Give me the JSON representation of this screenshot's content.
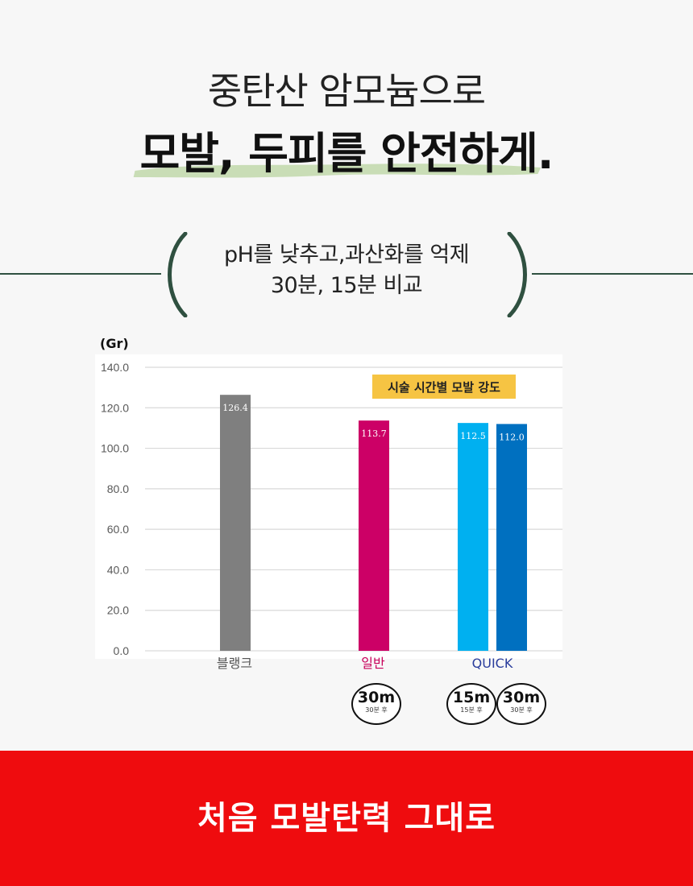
{
  "headline": {
    "line1": "중탄산 암모늄으로",
    "line2": "모발, 두피를 안전하게."
  },
  "subtitle": {
    "line1": "pH를 낮추고,과산화를 억제",
    "line2": "30분, 15분 비교"
  },
  "colors": {
    "accent_green": "#2f5040",
    "brush_green": "#c9ddb6",
    "footer_red": "#ef0c0e",
    "legend_bg": "#f6c443"
  },
  "chart_data": {
    "type": "bar",
    "unit_label": "(Gr)",
    "legend": "시술 시간별 모발 강도",
    "ylim": [
      0,
      140
    ],
    "yticks": [
      "0.0",
      "20.0",
      "40.0",
      "60.0",
      "80.0",
      "100.0",
      "120.0",
      "140.0"
    ],
    "grid": true,
    "categories": [
      {
        "label": "블랭크",
        "color": "#555555"
      },
      {
        "label": "일반",
        "color": "#c8005a"
      },
      {
        "label": "QUICK",
        "color": "#2a3d9c"
      }
    ],
    "bars": [
      {
        "category": 0,
        "value": 126.4,
        "label": "126.4",
        "color": "#7f7f7f"
      },
      {
        "category": 1,
        "value": 113.7,
        "label": "113.7",
        "color": "#cc0066"
      },
      {
        "category": 2,
        "value": 112.5,
        "label": "112.5",
        "color": "#00b0f0"
      },
      {
        "category": 2,
        "value": 112.0,
        "label": "112.0",
        "color": "#0070c0"
      }
    ]
  },
  "badges": [
    {
      "big": "30m",
      "small": "30분 후"
    },
    {
      "big": "15m",
      "small": "15분 후"
    },
    {
      "big": "30m",
      "small": "30분 후"
    }
  ],
  "footer": {
    "text": "처음 모발탄력 그대로"
  }
}
